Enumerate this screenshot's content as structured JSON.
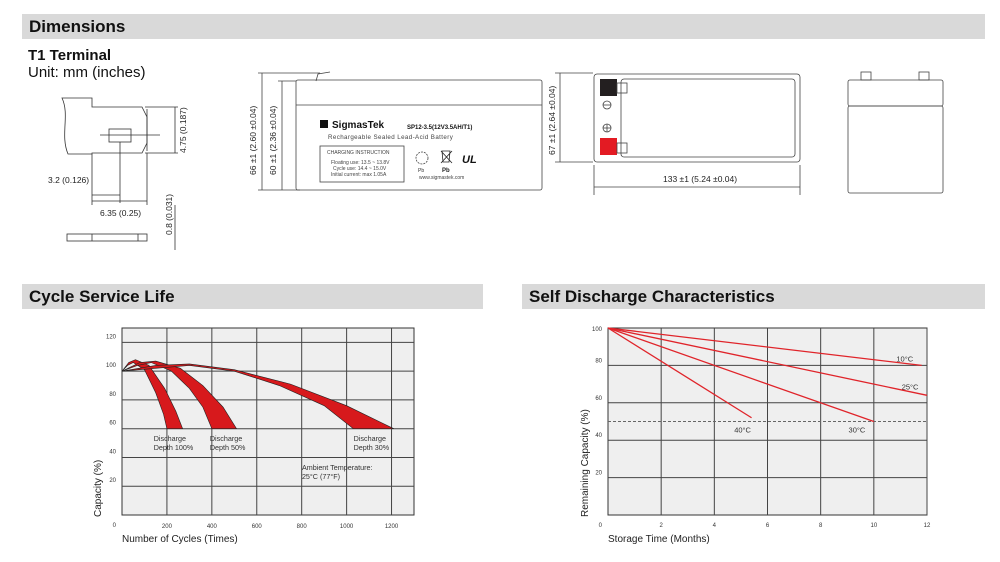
{
  "sections": {
    "dimensions": "Dimensions",
    "cycle_life": "Cycle Service Life",
    "self_discharge": "Self Discharge Characteristics"
  },
  "terminal": {
    "title": "T1 Terminal",
    "unit": "Unit: mm (inches)",
    "dims": [
      "4.75 (0.187)",
      "3.2 (0.126)",
      "6.35 (0.25)",
      "0.8 (0.031)"
    ]
  },
  "front_view": {
    "height_total": "66 ±1 (2.60 ±0.04)",
    "height_case": "60 ±1 (2.36 ±0.04)",
    "brand": "SigmasTek",
    "model": "SP12-3.5(12V3.5AH/T1)",
    "subtitle": "Rechargeable Sealed Lead-Acid Battery",
    "charging_title": "CHARGING INSTRUCTION",
    "charging_lines": [
      "Floating use: 13.5 ~ 13.8V",
      "Cycle use: 14.4 ~ 15.0V",
      "Initial current: max 1.05A"
    ],
    "pb_labels": [
      "Pb",
      "Pb"
    ],
    "ul_mark": "UL",
    "website": "www.sigmastek.com"
  },
  "top_view": {
    "height": "67 ±1 (2.64 ±0.04)",
    "length": "133 ±1 (5.24 ±0.04)",
    "negative_color": "#231f20",
    "positive_color": "#e31b23"
  },
  "chart_data": [
    {
      "type": "area",
      "title": "Cycle Service Life",
      "xlabel": "Number of Cycles (Times)",
      "ylabel": "Capacity (%)",
      "xlim": [
        0,
        1300
      ],
      "ylim": [
        0,
        130
      ],
      "xticks": [
        "200",
        "400",
        "600",
        "800",
        "1000",
        "1200"
      ],
      "yticks": [
        "0",
        "20",
        "40",
        "60",
        "80",
        "100",
        "120"
      ],
      "grid": true,
      "fill_color": "#d7191c",
      "series": [
        {
          "name": "Discharge Depth 100%",
          "upper": [
            [
              0,
              100
            ],
            [
              30,
              106
            ],
            [
              60,
              108
            ],
            [
              120,
              104
            ],
            [
              190,
              88
            ],
            [
              240,
              72
            ],
            [
              270,
              60
            ]
          ],
          "lower": [
            [
              0,
              100
            ],
            [
              25,
              104
            ],
            [
              50,
              106
            ],
            [
              100,
              101
            ],
            [
              150,
              85
            ],
            [
              185,
              70
            ],
            [
              200,
              60
            ]
          ]
        },
        {
          "name": "Discharge Depth 50%",
          "upper": [
            [
              0,
              100
            ],
            [
              80,
              106
            ],
            [
              150,
              107
            ],
            [
              260,
              102
            ],
            [
              360,
              90
            ],
            [
              450,
              75
            ],
            [
              510,
              60
            ]
          ],
          "lower": [
            [
              0,
              100
            ],
            [
              70,
              104
            ],
            [
              130,
              106
            ],
            [
              220,
              100
            ],
            [
              300,
              88
            ],
            [
              360,
              75
            ],
            [
              400,
              60
            ]
          ]
        },
        {
          "name": "Discharge Depth 30%",
          "upper": [
            [
              0,
              100
            ],
            [
              150,
              104
            ],
            [
              300,
              105
            ],
            [
              500,
              101
            ],
            [
              750,
              91
            ],
            [
              1000,
              76
            ],
            [
              1210,
              60
            ]
          ],
          "lower": [
            [
              0,
              100
            ],
            [
              150,
              102
            ],
            [
              300,
              104
            ],
            [
              500,
              100
            ],
            [
              700,
              90
            ],
            [
              900,
              76
            ],
            [
              1030,
              60
            ]
          ]
        }
      ],
      "annotations": [
        "Discharge",
        "Depth 100%",
        "Discharge",
        "Depth 50%",
        "Discharge",
        "Depth 30%",
        "Ambient Temperature:",
        "25°C (77°F)"
      ]
    },
    {
      "type": "line",
      "title": "Self Discharge Characteristics",
      "xlabel": "Storage Time (Months)",
      "ylabel": "Remaining Capacity (%)",
      "xlim": [
        0,
        12
      ],
      "ylim": [
        0,
        100
      ],
      "xticks": [
        "0",
        "2",
        "4",
        "6",
        "8",
        "10",
        "12"
      ],
      "yticks": [
        "20",
        "40",
        "60",
        "80",
        "100"
      ],
      "grid": true,
      "reference_line": 50,
      "line_color": "#e0242a",
      "series": [
        {
          "name": "10°C",
          "x": [
            0,
            11.8
          ],
          "y": [
            100,
            80
          ]
        },
        {
          "name": "25°C",
          "x": [
            0,
            12
          ],
          "y": [
            100,
            64
          ]
        },
        {
          "name": "30°C",
          "x": [
            0,
            10
          ],
          "y": [
            100,
            50
          ]
        },
        {
          "name": "40°C",
          "x": [
            0,
            5.4
          ],
          "y": [
            100,
            52
          ]
        }
      ]
    }
  ]
}
